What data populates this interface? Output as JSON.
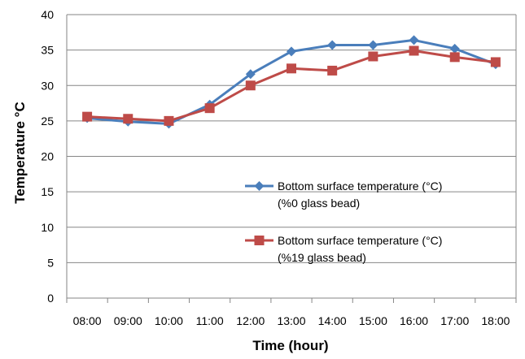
{
  "chart_data": {
    "type": "line",
    "title": "",
    "xlabel": "Time (hour)",
    "ylabel": "Temperature °C",
    "categories": [
      "08:00",
      "09:00",
      "10:00",
      "11:00",
      "12:00",
      "13:00",
      "14:00",
      "15:00",
      "16:00",
      "17:00",
      "18:00"
    ],
    "ylim": [
      0,
      40
    ],
    "yticks": [
      0,
      5,
      10,
      15,
      20,
      25,
      30,
      35,
      40
    ],
    "grid": true,
    "legend_position": "right",
    "series": [
      {
        "name": "Bottom surface temperature (°C)",
        "name_line2": "(%0 glass bead)",
        "marker": "diamond",
        "color": "#4a7ebb",
        "values": [
          25.4,
          24.9,
          24.6,
          27.3,
          31.6,
          34.8,
          35.7,
          35.7,
          36.4,
          35.2,
          33.0
        ]
      },
      {
        "name": "Bottom surface temperature (°C)",
        "name_line2": "(%19 glass bead)",
        "marker": "square",
        "color": "#be4b48",
        "values": [
          25.6,
          25.3,
          25.0,
          26.8,
          30.0,
          32.4,
          32.1,
          34.1,
          34.9,
          34.0,
          33.3
        ]
      }
    ]
  }
}
